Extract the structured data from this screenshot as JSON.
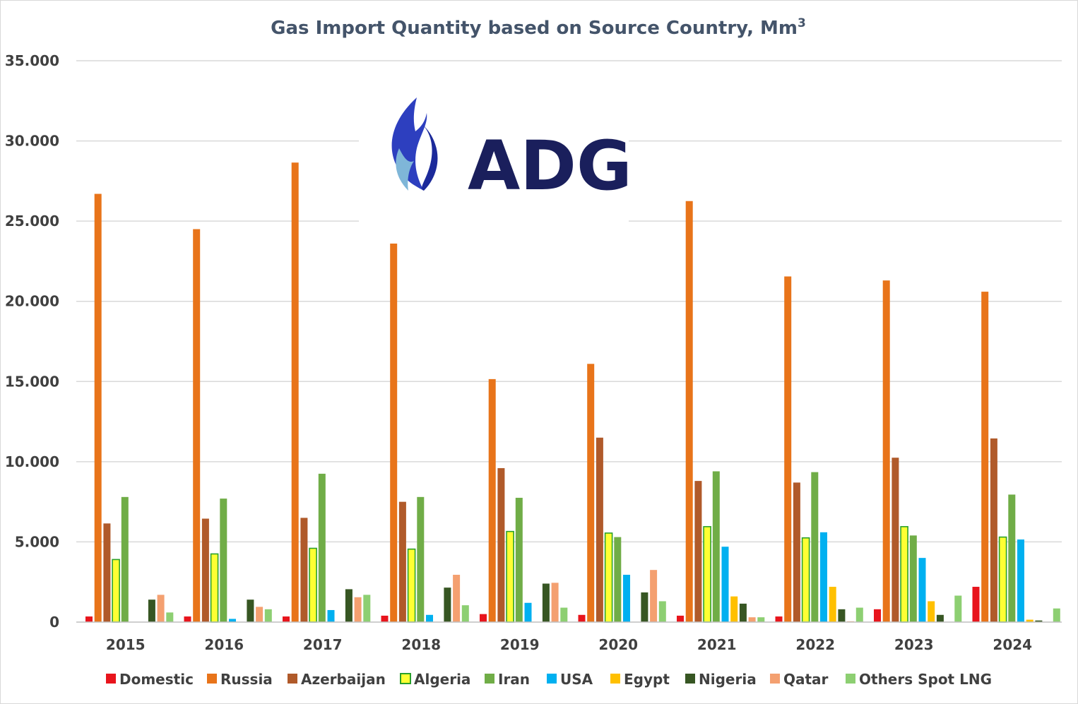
{
  "chart_data": {
    "type": "bar",
    "title": "Gas Import Quantity based on Source Country, Mm",
    "title_superscript": "3",
    "categories": [
      "2015",
      "2016",
      "2017",
      "2018",
      "2019",
      "2020",
      "2021",
      "2022",
      "2023",
      "2024"
    ],
    "ylim": [
      0,
      35000
    ],
    "yticks": [
      0,
      5000,
      10000,
      15000,
      20000,
      25000,
      30000,
      35000
    ],
    "ytick_labels": [
      "0",
      "5.000",
      "10.000",
      "15.000",
      "20.000",
      "25.000",
      "30.000",
      "35.000"
    ],
    "grid": true,
    "legend_position": "bottom",
    "series": [
      {
        "name": "Domestic",
        "color": "#e8141c",
        "values": [
          350,
          350,
          350,
          400,
          500,
          450,
          400,
          350,
          800,
          2200
        ]
      },
      {
        "name": "Russia",
        "color": "#e8741a",
        "values": [
          26700,
          24500,
          28650,
          23600,
          15150,
          16100,
          26250,
          21550,
          21300,
          20600
        ]
      },
      {
        "name": "Azerbaijan",
        "color": "#b05a2a",
        "values": [
          6150,
          6450,
          6500,
          7500,
          9600,
          11500,
          8800,
          8700,
          10250,
          11450
        ]
      },
      {
        "name": "Algeria",
        "color": "#ffff33",
        "border": "#2aa02a",
        "values": [
          3900,
          4250,
          4600,
          4550,
          5650,
          5550,
          5950,
          5250,
          5950,
          5300
        ]
      },
      {
        "name": "Iran",
        "color": "#70ad47",
        "values": [
          7800,
          7700,
          9250,
          7800,
          7750,
          5300,
          9400,
          9350,
          5400,
          7950
        ]
      },
      {
        "name": "USA",
        "color": "#00b0f0",
        "values": [
          0,
          200,
          750,
          450,
          1200,
          2950,
          4700,
          5600,
          4000,
          5150
        ]
      },
      {
        "name": "Egypt",
        "color": "#ffc000",
        "values": [
          0,
          0,
          0,
          0,
          0,
          0,
          1600,
          2200,
          1300,
          150
        ]
      },
      {
        "name": "Nigeria",
        "color": "#375623",
        "values": [
          1400,
          1400,
          2050,
          2150,
          2400,
          1850,
          1150,
          800,
          450,
          100
        ]
      },
      {
        "name": "Qatar",
        "color": "#f4a070",
        "values": [
          1700,
          950,
          1550,
          2950,
          2450,
          3250,
          300,
          50,
          0,
          0
        ]
      },
      {
        "name": "Others Spot LNG",
        "color": "#8dcf72",
        "values": [
          600,
          800,
          1700,
          1050,
          900,
          1300,
          300,
          900,
          1650,
          850
        ]
      }
    ]
  },
  "logo": {
    "text": "ADG"
  }
}
